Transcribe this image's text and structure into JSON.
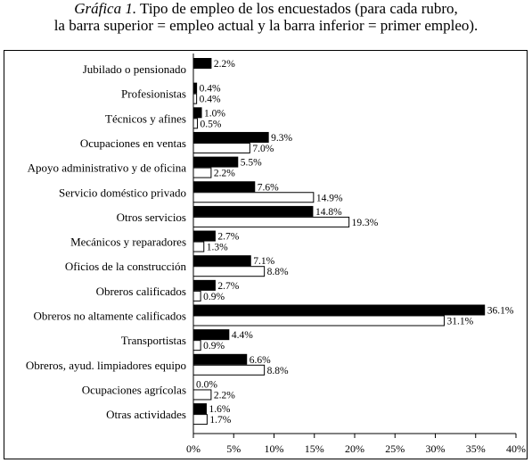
{
  "chart_data": {
    "type": "bar",
    "orientation": "horizontal",
    "title_label": "Gráfica 1.",
    "title_line1": "Tipo de empleo de los encuestados (para cada rubro,",
    "title_line2": "la barra superior = empleo actual y la barra inferior = primer empleo).",
    "categories": [
      "Jubilado o pensionado",
      "Profesionistas",
      "Técnicos y afines",
      "Ocupaciones en ventas",
      "Apoyo administrativo y de oficina",
      "Servicio doméstico privado",
      "Otros servicios",
      "Mecánicos y reparadores",
      "Oficios de la construcción",
      "Obreros calificados",
      "Obreros no altamente calificados",
      "Transportistas",
      "Obreros, ayud. limpiadores equipo",
      "Ocupaciones agrícolas",
      "Otras actividades"
    ],
    "series": [
      {
        "color": "#000000",
        "values": [
          2.2,
          0.4,
          1.0,
          9.3,
          5.5,
          7.6,
          14.8,
          2.7,
          7.1,
          2.7,
          36.1,
          4.4,
          6.6,
          0.0,
          1.6
        ],
        "labels": [
          "2.2%",
          "0.4%",
          "1.0%",
          "9.3%",
          "5.5%",
          "7.6%",
          "14.8%",
          "2.7%",
          "7.1%",
          "2.7%",
          "36.1%",
          "4.4%",
          "6.6%",
          "0.0%",
          "1.6%"
        ]
      },
      {
        "color": "#ffffff",
        "values": [
          null,
          0.4,
          0.5,
          7.0,
          2.2,
          14.9,
          19.3,
          1.3,
          8.8,
          0.9,
          31.1,
          0.9,
          8.8,
          2.2,
          1.7
        ],
        "labels": [
          null,
          "0.4%",
          "0.5%",
          "7.0%",
          "2.2%",
          "14.9%",
          "19.3%",
          "1.3%",
          "8.8%",
          "0.9%",
          "31.1%",
          "0.9%",
          "8.8%",
          "2.2%",
          "1.7%"
        ]
      }
    ],
    "xlim": [
      0,
      40
    ],
    "xticks": [
      "0%",
      "5%",
      "10%",
      "15%",
      "20%",
      "25%",
      "30%",
      "35%",
      "40%"
    ],
    "xtick_values": [
      0,
      5,
      10,
      15,
      20,
      25,
      30,
      35,
      40
    ],
    "grid": false,
    "legend": "none"
  }
}
